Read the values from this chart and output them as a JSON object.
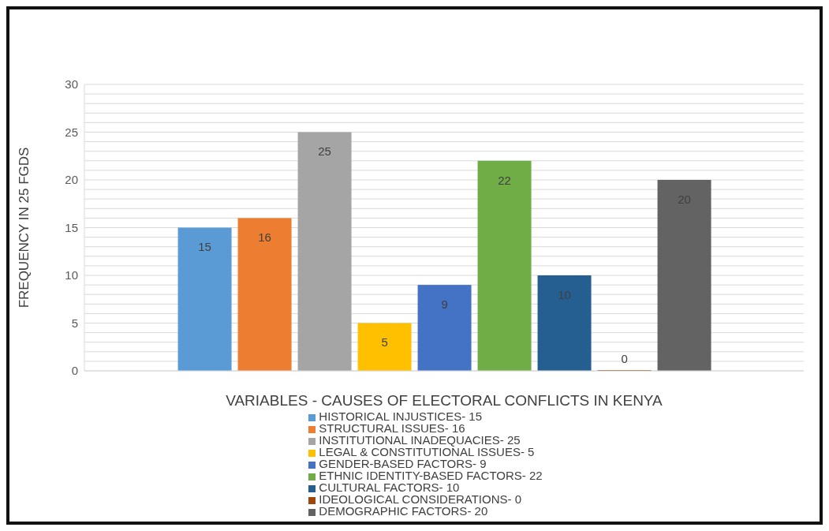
{
  "chart_data": {
    "type": "bar",
    "xlabel": "VARIABLES - CAUSES OF ELECTORAL  CONFLICTS  IN KENYA",
    "ylabel": "FREQUENCY IN 25 FGDS",
    "categories": [
      null
    ],
    "series": [
      {
        "name": "HISTORICAL INJUSTICES- 15",
        "color": "#5b9bd5",
        "values": [
          15
        ]
      },
      {
        "name": "STRUCTURAL ISSUES- 16",
        "color": "#ed7d31",
        "values": [
          16
        ]
      },
      {
        "name": "INSTITUTIONAL INADEQUACIES- 25",
        "color": "#a5a5a5",
        "values": [
          25
        ]
      },
      {
        "name": "LEGAL & CONSTITUTIONAL ISSUES- 5",
        "color": "#ffc000",
        "values": [
          5
        ]
      },
      {
        "name": "GENDER-BASED FACTORS- 9",
        "color": "#4472c4",
        "values": [
          9
        ]
      },
      {
        "name": "ETHNIC IDENTITY-BASED FACTORS- 22",
        "color": "#70ad47",
        "values": [
          22
        ]
      },
      {
        "name": "CULTURAL FACTORS- 10",
        "color": "#255e91",
        "values": [
          10
        ]
      },
      {
        "name": "IDEOLOGICAL CONSIDERATIONS- 0",
        "color": "#9e480e",
        "values": [
          0
        ]
      },
      {
        "name": "DEMOGRAPHIC FACTORS- 20",
        "color": "#636363",
        "values": [
          20
        ]
      }
    ],
    "ylim": [
      0,
      30
    ],
    "yticks": [
      0,
      {
        "value": 1,
        "label": null
      },
      {
        "value": 2,
        "label": null
      },
      {
        "value": 3,
        "label": null
      },
      {
        "value": 4,
        "label": null
      },
      5,
      {
        "value": 6,
        "label": null
      },
      {
        "value": 7,
        "label": null
      },
      {
        "value": 8,
        "label": null
      },
      {
        "value": 9,
        "label": null
      },
      10,
      {
        "value": 11,
        "label": null
      },
      {
        "value": 12,
        "label": null
      },
      {
        "value": 13,
        "label": null
      },
      {
        "value": 14,
        "label": null
      },
      15,
      {
        "value": 16,
        "label": null
      },
      {
        "value": 17,
        "label": null
      },
      {
        "value": 18,
        "label": null
      },
      {
        "value": 19,
        "label": null
      },
      20,
      {
        "value": 21,
        "label": null
      },
      {
        "value": 22,
        "label": null
      },
      {
        "value": 23,
        "label": null
      },
      {
        "value": 24,
        "label": null
      },
      25,
      {
        "value": 26,
        "label": null
      },
      {
        "value": 27,
        "label": null
      },
      {
        "value": 28,
        "label": null
      },
      {
        "value": 29,
        "label": null
      },
      30
    ],
    "grid": "y",
    "legend": "bottom",
    "data_labels": true
  }
}
